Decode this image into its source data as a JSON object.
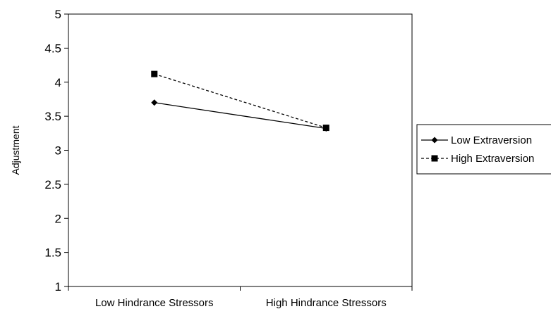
{
  "chart_data": {
    "type": "line",
    "categories": [
      "Low Hindrance Stressors",
      "High Hindrance Stressors"
    ],
    "series": [
      {
        "name": "Low Extraversion",
        "values": [
          3.7,
          3.32
        ],
        "marker": "diamond",
        "dash": "solid"
      },
      {
        "name": "High Extraversion",
        "values": [
          4.12,
          3.33
        ],
        "marker": "square",
        "dash": "dashed"
      }
    ],
    "title": "",
    "xlabel": "",
    "ylabel": "Adjustment",
    "ylim": [
      1,
      5
    ],
    "yticks": [
      1,
      1.5,
      2,
      2.5,
      3,
      3.5,
      4,
      4.5,
      5
    ],
    "grid": false,
    "legend_position": "right",
    "colors": {
      "line": "#000000",
      "frame": "#000000"
    }
  }
}
